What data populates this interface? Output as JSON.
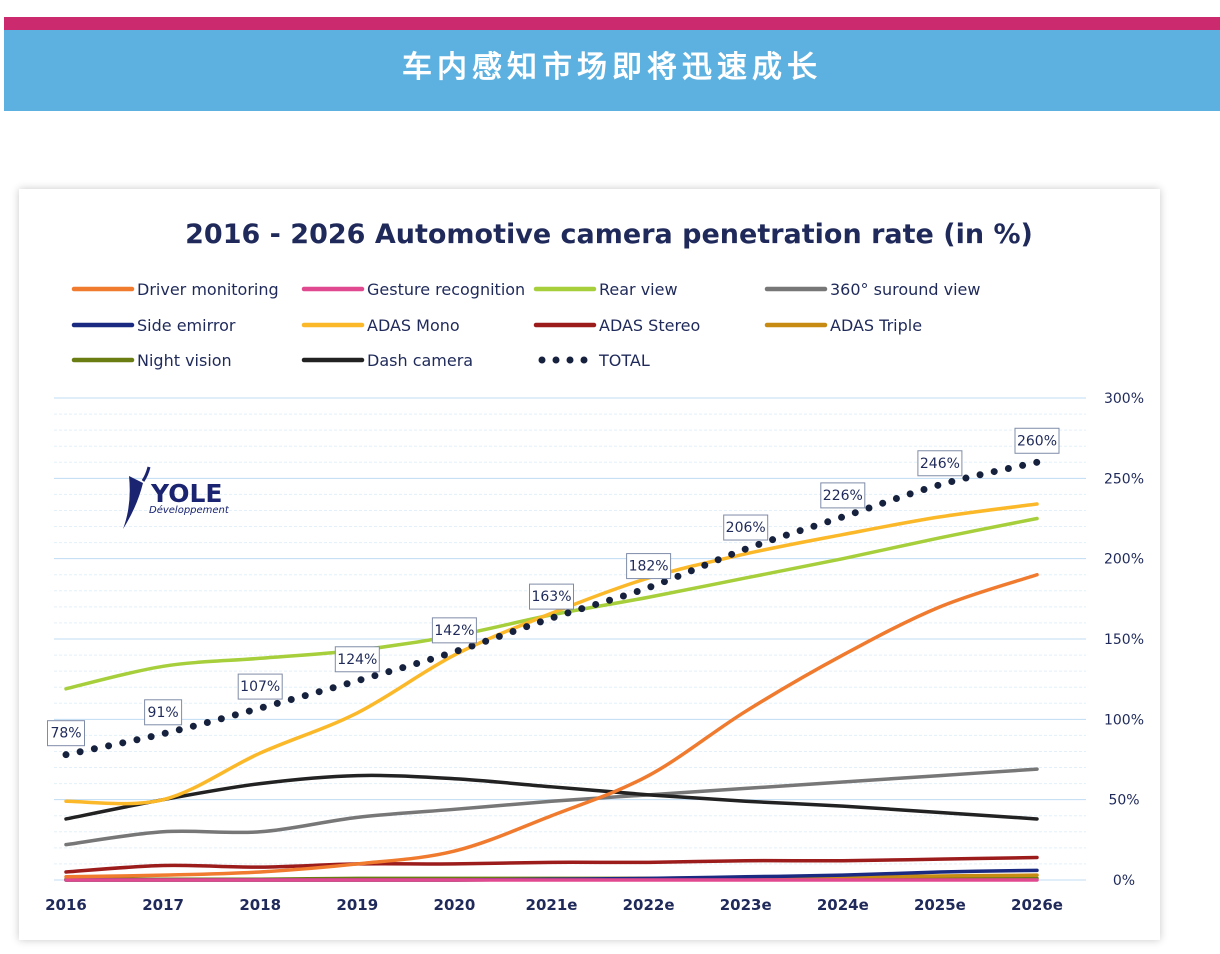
{
  "banner": {
    "title": "车内感知市场即将迅速成长"
  },
  "logo": {
    "name": "YOLE",
    "subtitle": "Développement"
  },
  "colors": {
    "banner_bg": "#5cb1e0",
    "banner_stripe": "#cc2a6e",
    "title_text": "#1f2a5a",
    "grid": "#cde5f7"
  },
  "chart_data": {
    "type": "line",
    "title": "2016 - 2026 Automotive camera penetration rate (in %)",
    "categories": [
      "2016",
      "2017",
      "2018",
      "2019",
      "2020",
      "2021e",
      "2022e",
      "2023e",
      "2024e",
      "2025e",
      "2026e"
    ],
    "y_ticks": [
      "300%",
      "250%",
      "200%",
      "150%",
      "100%",
      "50%",
      "0%"
    ],
    "ylim": [
      0,
      300
    ],
    "y_axis_side": "right",
    "grid": true,
    "legend_position": "top",
    "series": [
      {
        "name": "Driver monitoring",
        "color": "#f07a2e",
        "style": "solid",
        "values": [
          2,
          3,
          5,
          10,
          18,
          40,
          65,
          105,
          140,
          170,
          190
        ]
      },
      {
        "name": "Gesture recognition",
        "color": "#e0488f",
        "style": "solid",
        "values": [
          0,
          0,
          0,
          0,
          0,
          0,
          0,
          0,
          0,
          0,
          0
        ]
      },
      {
        "name": "Rear view",
        "color": "#a6cf3b",
        "style": "solid",
        "values": [
          119,
          133,
          138,
          143,
          152,
          165,
          176,
          188,
          200,
          213,
          225
        ]
      },
      {
        "name": "360° suround view",
        "color": "#777777",
        "style": "solid",
        "values": [
          22,
          30,
          30,
          39,
          44,
          49,
          53,
          57,
          61,
          65,
          69
        ]
      },
      {
        "name": "Side emirror",
        "color": "#1a2a80",
        "style": "solid",
        "values": [
          0,
          0,
          0,
          0,
          0,
          0.5,
          1,
          2,
          3,
          5,
          6
        ]
      },
      {
        "name": "ADAS Mono",
        "color": "#fbb829",
        "style": "solid",
        "values": [
          49,
          50,
          79,
          104,
          140,
          166,
          188,
          203,
          215,
          226,
          234
        ]
      },
      {
        "name": "ADAS Stereo",
        "color": "#9c1c1c",
        "style": "solid",
        "values": [
          5,
          9,
          8,
          10,
          10,
          11,
          11,
          12,
          12,
          13,
          14
        ]
      },
      {
        "name": "ADAS Triple",
        "color": "#c78a12",
        "style": "solid",
        "values": [
          0,
          0,
          0,
          0,
          0,
          0.5,
          1,
          1.5,
          2,
          2.5,
          3
        ]
      },
      {
        "name": "Night vision",
        "color": "#6a7d12",
        "style": "solid",
        "values": [
          0.5,
          0.5,
          0.5,
          1,
          1,
          1,
          1,
          1,
          1,
          1,
          1
        ]
      },
      {
        "name": "Dash camera",
        "color": "#222222",
        "style": "solid",
        "values": [
          38,
          50,
          60,
          65,
          63,
          58,
          53,
          49,
          46,
          42,
          38
        ]
      },
      {
        "name": "TOTAL",
        "color": "#16213e",
        "style": "dotted",
        "values": [
          78,
          91,
          107,
          124,
          142,
          163,
          182,
          206,
          226,
          246,
          260
        ]
      }
    ],
    "data_labels": [
      "78%",
      "91%",
      "107%",
      "124%",
      "142%",
      "163%",
      "182%",
      "206%",
      "226%",
      "246%",
      "260%"
    ]
  }
}
